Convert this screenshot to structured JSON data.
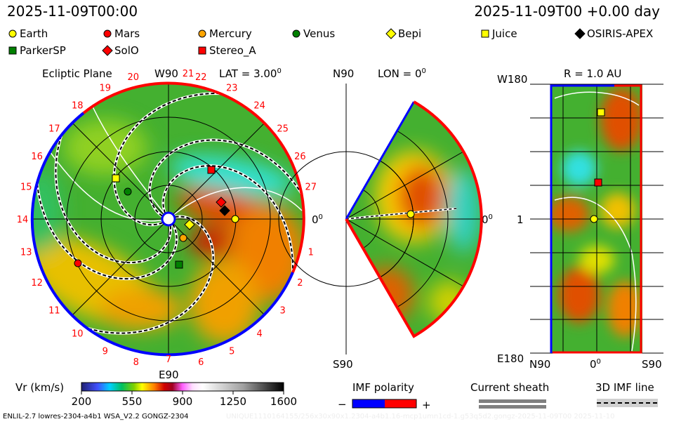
{
  "header": {
    "left_time": "2025-11-09T00:00",
    "right_time": "2025-11-09T00 +0.00 day"
  },
  "legend": [
    {
      "label": "Earth",
      "shape": "circle",
      "color": "#ffff00"
    },
    {
      "label": "Mars",
      "shape": "circle",
      "color": "#ff0000"
    },
    {
      "label": "Mercury",
      "shape": "circle",
      "color": "#ffa500"
    },
    {
      "label": "Venus",
      "shape": "circle",
      "color": "#008000"
    },
    {
      "label": "Bepi",
      "shape": "diamond",
      "color": "#ffff00"
    },
    {
      "label": "Juice",
      "shape": "square",
      "color": "#ffff00"
    },
    {
      "label": "OSIRIS-APEX",
      "shape": "diamond",
      "color": "#000000"
    },
    {
      "label": "ParkerSP",
      "shape": "square",
      "color": "#008000"
    },
    {
      "label": "SolO",
      "shape": "diamond",
      "color": "#ff0000"
    },
    {
      "label": "Stereo_A",
      "shape": "square",
      "color": "#ff0000"
    }
  ],
  "ecliptic": {
    "title": "Ecliptic Plane",
    "top_label": "W90",
    "bottom_label": "E90",
    "lat": "LAT = 3.00",
    "deg": "0",
    "right_label": "0",
    "carrington_labels": [
      "1",
      "2",
      "3",
      "4",
      "5",
      "6",
      "7",
      "8",
      "9",
      "10",
      "11",
      "12",
      "13",
      "14",
      "15",
      "16",
      "17",
      "18",
      "19",
      "20",
      "21",
      "22",
      "23",
      "24",
      "25",
      "26",
      "27"
    ]
  },
  "meridional": {
    "top_label": "N90",
    "bottom_label": "S90",
    "lon": "LON = 0",
    "deg": "0",
    "right_label": "0"
  },
  "rpanel": {
    "title": "R = 1.0 AU",
    "top_left": "W180",
    "bottom_left": "E180",
    "mid_left": "1",
    "x_left": "N90",
    "x_mid": "0",
    "x_right": "S90",
    "deg": "0"
  },
  "colorbar": {
    "label": "Vr (km/s)",
    "ticks": [
      "200",
      "550",
      "900",
      "1250",
      "1600"
    ],
    "range": [
      200,
      1600
    ]
  },
  "imf": {
    "title": "IMF polarity",
    "minus": "−",
    "plus": "+",
    "neg_color": "#0000ff",
    "pos_color": "#ff0000"
  },
  "sheath": {
    "title": "Current sheath"
  },
  "imfline": {
    "title": "3D IMF line"
  },
  "footer": {
    "left": "ENLIL-2.7 lowres-2304-a4b1 WSA_V2.2 GONGZ-2304",
    "right": "UNIQUE1110164155/256x30x90x1.2304-a4b1.16-mcp1umn1cd-1.g53q5d2.gongz-2025-11-09T00   2025-11-10"
  }
}
